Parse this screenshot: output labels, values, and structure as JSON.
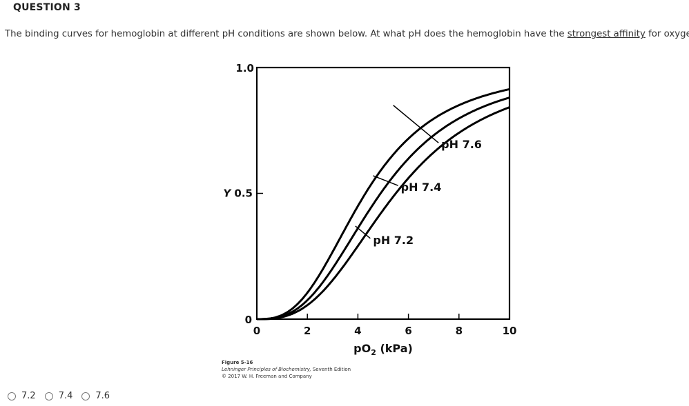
{
  "question": {
    "title": "QUESTION 3",
    "text_before": "The binding curves for hemoglobin at different pH conditions are shown below. At what pH does the hemoglobin have the ",
    "text_underlined": "strongest affinity",
    "text_after": " for oxygen?"
  },
  "answers": [
    {
      "label": "7.2",
      "selected": false
    },
    {
      "label": "7.4",
      "selected": false
    },
    {
      "label": "7.6",
      "selected": false
    }
  ],
  "caption": {
    "figure": "Figure 5-16",
    "book": "Lehninger Principles of Biochemistry,",
    "edition": " Seventh Edition",
    "copyright": "© 2017 W. H. Freeman and Company"
  },
  "chart_data": {
    "type": "line",
    "title": "",
    "xlabel": "pO2 (kPa)",
    "ylabel": "Y",
    "xlim": [
      0,
      10
    ],
    "ylim": [
      0,
      1.0
    ],
    "x_ticks": [
      0,
      2,
      4,
      6,
      8,
      10
    ],
    "y_ticks": [
      {
        "value": 0,
        "label": "0"
      },
      {
        "value": 0.5,
        "label": "Y 0.5"
      },
      {
        "value": 1.0,
        "label": "1.0"
      }
    ],
    "grid": false,
    "legend": "inline labels",
    "series": [
      {
        "name": "pH 7.6",
        "p50": 4.3,
        "hill_n": 2.8,
        "x": [
          0,
          1,
          2,
          3,
          4,
          5,
          6,
          7,
          8,
          9,
          10
        ],
        "values": [
          0,
          0.02,
          0.11,
          0.27,
          0.45,
          0.61,
          0.72,
          0.8,
          0.86,
          0.89,
          0.92
        ],
        "label_anchor": {
          "x": 5.4,
          "y": 0.85
        },
        "label_pos": {
          "x": 7.3,
          "y": 0.69
        }
      },
      {
        "name": "pH 7.4",
        "p50": 4.9,
        "hill_n": 2.8,
        "x": [
          0,
          1,
          2,
          3,
          4,
          5,
          6,
          7,
          8,
          9,
          10
        ],
        "values": [
          0,
          0.01,
          0.08,
          0.2,
          0.36,
          0.51,
          0.64,
          0.73,
          0.8,
          0.85,
          0.88
        ],
        "label_anchor": {
          "x": 4.6,
          "y": 0.57
        },
        "label_pos": {
          "x": 5.7,
          "y": 0.52
        }
      },
      {
        "name": "pH 7.2",
        "p50": 5.5,
        "hill_n": 2.8,
        "x": [
          0,
          1,
          2,
          3,
          4,
          5,
          6,
          7,
          8,
          9,
          10
        ],
        "values": [
          0,
          0.01,
          0.05,
          0.15,
          0.29,
          0.43,
          0.56,
          0.66,
          0.74,
          0.8,
          0.84
        ],
        "label_anchor": {
          "x": 3.9,
          "y": 0.37
        },
        "label_pos": {
          "x": 4.6,
          "y": 0.31
        }
      }
    ]
  }
}
